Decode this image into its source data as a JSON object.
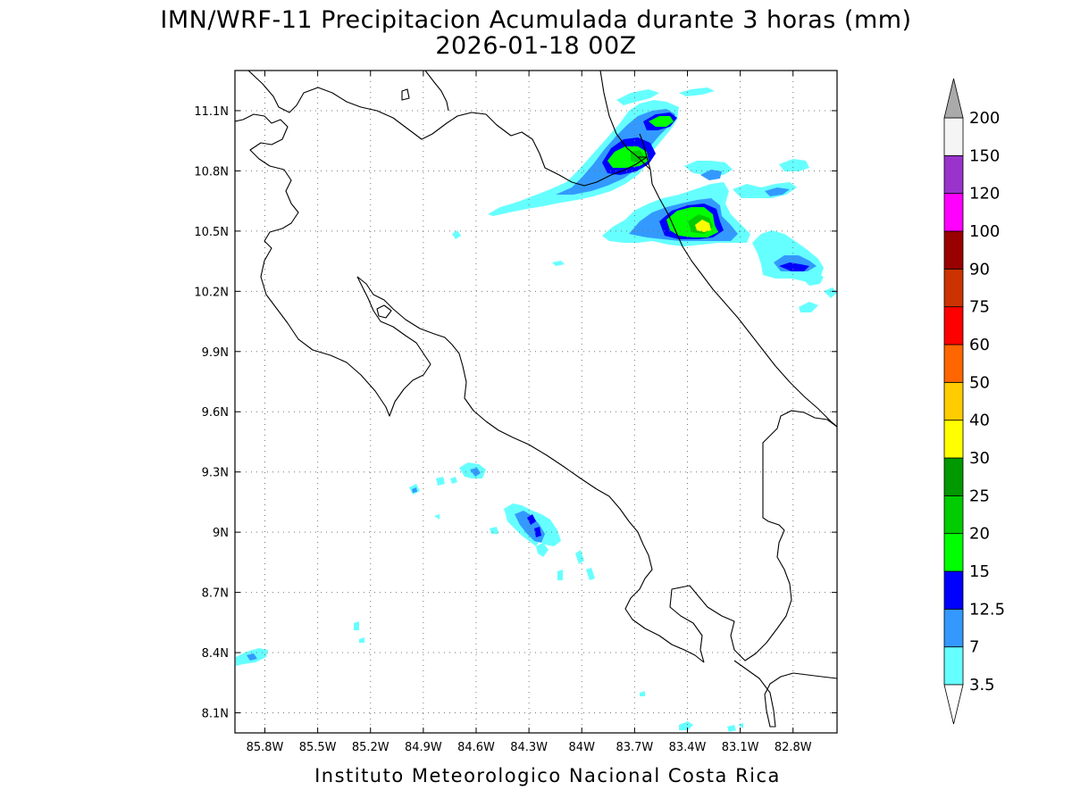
{
  "title": "IMN/WRF-11 Precipitacion Acumulada durante 3 horas (mm)",
  "subtitle": "2026-01-18 00Z",
  "footer": "Instituto Meteorologico Nacional Costa Rica",
  "map": {
    "lon_min": -85.97,
    "lon_max": -82.55,
    "lat_min": 8.0,
    "lat_max": 11.3,
    "lon_ticks": [
      {
        "value": -85.8,
        "label": "85.8W"
      },
      {
        "value": -85.5,
        "label": "85.5W"
      },
      {
        "value": -85.2,
        "label": "85.2W"
      },
      {
        "value": -84.9,
        "label": "84.9W"
      },
      {
        "value": -84.6,
        "label": "84.6W"
      },
      {
        "value": -84.3,
        "label": "84.3W"
      },
      {
        "value": -84.0,
        "label": "84W"
      },
      {
        "value": -83.7,
        "label": "83.7W"
      },
      {
        "value": -83.4,
        "label": "83.4W"
      },
      {
        "value": -83.1,
        "label": "83.1W"
      },
      {
        "value": -82.8,
        "label": "82.8W"
      }
    ],
    "lat_ticks": [
      {
        "value": 11.1,
        "label": "11.1N"
      },
      {
        "value": 10.8,
        "label": "10.8N"
      },
      {
        "value": 10.5,
        "label": "10.5N"
      },
      {
        "value": 10.2,
        "label": "10.2N"
      },
      {
        "value": 9.9,
        "label": "9.9N"
      },
      {
        "value": 9.6,
        "label": "9.6N"
      },
      {
        "value": 9.3,
        "label": "9.3N"
      },
      {
        "value": 9.0,
        "label": "9N"
      },
      {
        "value": 8.7,
        "label": "8.7N"
      },
      {
        "value": 8.4,
        "label": "8.4N"
      },
      {
        "value": 8.1,
        "label": "8.1N"
      }
    ],
    "grid": true
  },
  "colorbar": {
    "levels": [
      {
        "label": "3.5",
        "color": "#66ffff"
      },
      {
        "label": "7",
        "color": "#3399ff"
      },
      {
        "label": "12.5",
        "color": "#0000ff"
      },
      {
        "label": "15",
        "color": "#00ff00"
      },
      {
        "label": "20",
        "color": "#00cc00"
      },
      {
        "label": "25",
        "color": "#009900"
      },
      {
        "label": "30",
        "color": "#ffff00"
      },
      {
        "label": "40",
        "color": "#ffcc00"
      },
      {
        "label": "50",
        "color": "#ff6600"
      },
      {
        "label": "60",
        "color": "#ff0000"
      },
      {
        "label": "75",
        "color": "#cc3300"
      },
      {
        "label": "90",
        "color": "#990000"
      },
      {
        "label": "100",
        "color": "#ff00ff"
      },
      {
        "label": "120",
        "color": "#9933cc"
      },
      {
        "label": "150",
        "color": "#f5f5f5"
      },
      {
        "label": "200",
        "color": ""
      }
    ],
    "top_arrow_color": "#aaaaaa",
    "bottom_arrow_color": "#ffffff"
  }
}
